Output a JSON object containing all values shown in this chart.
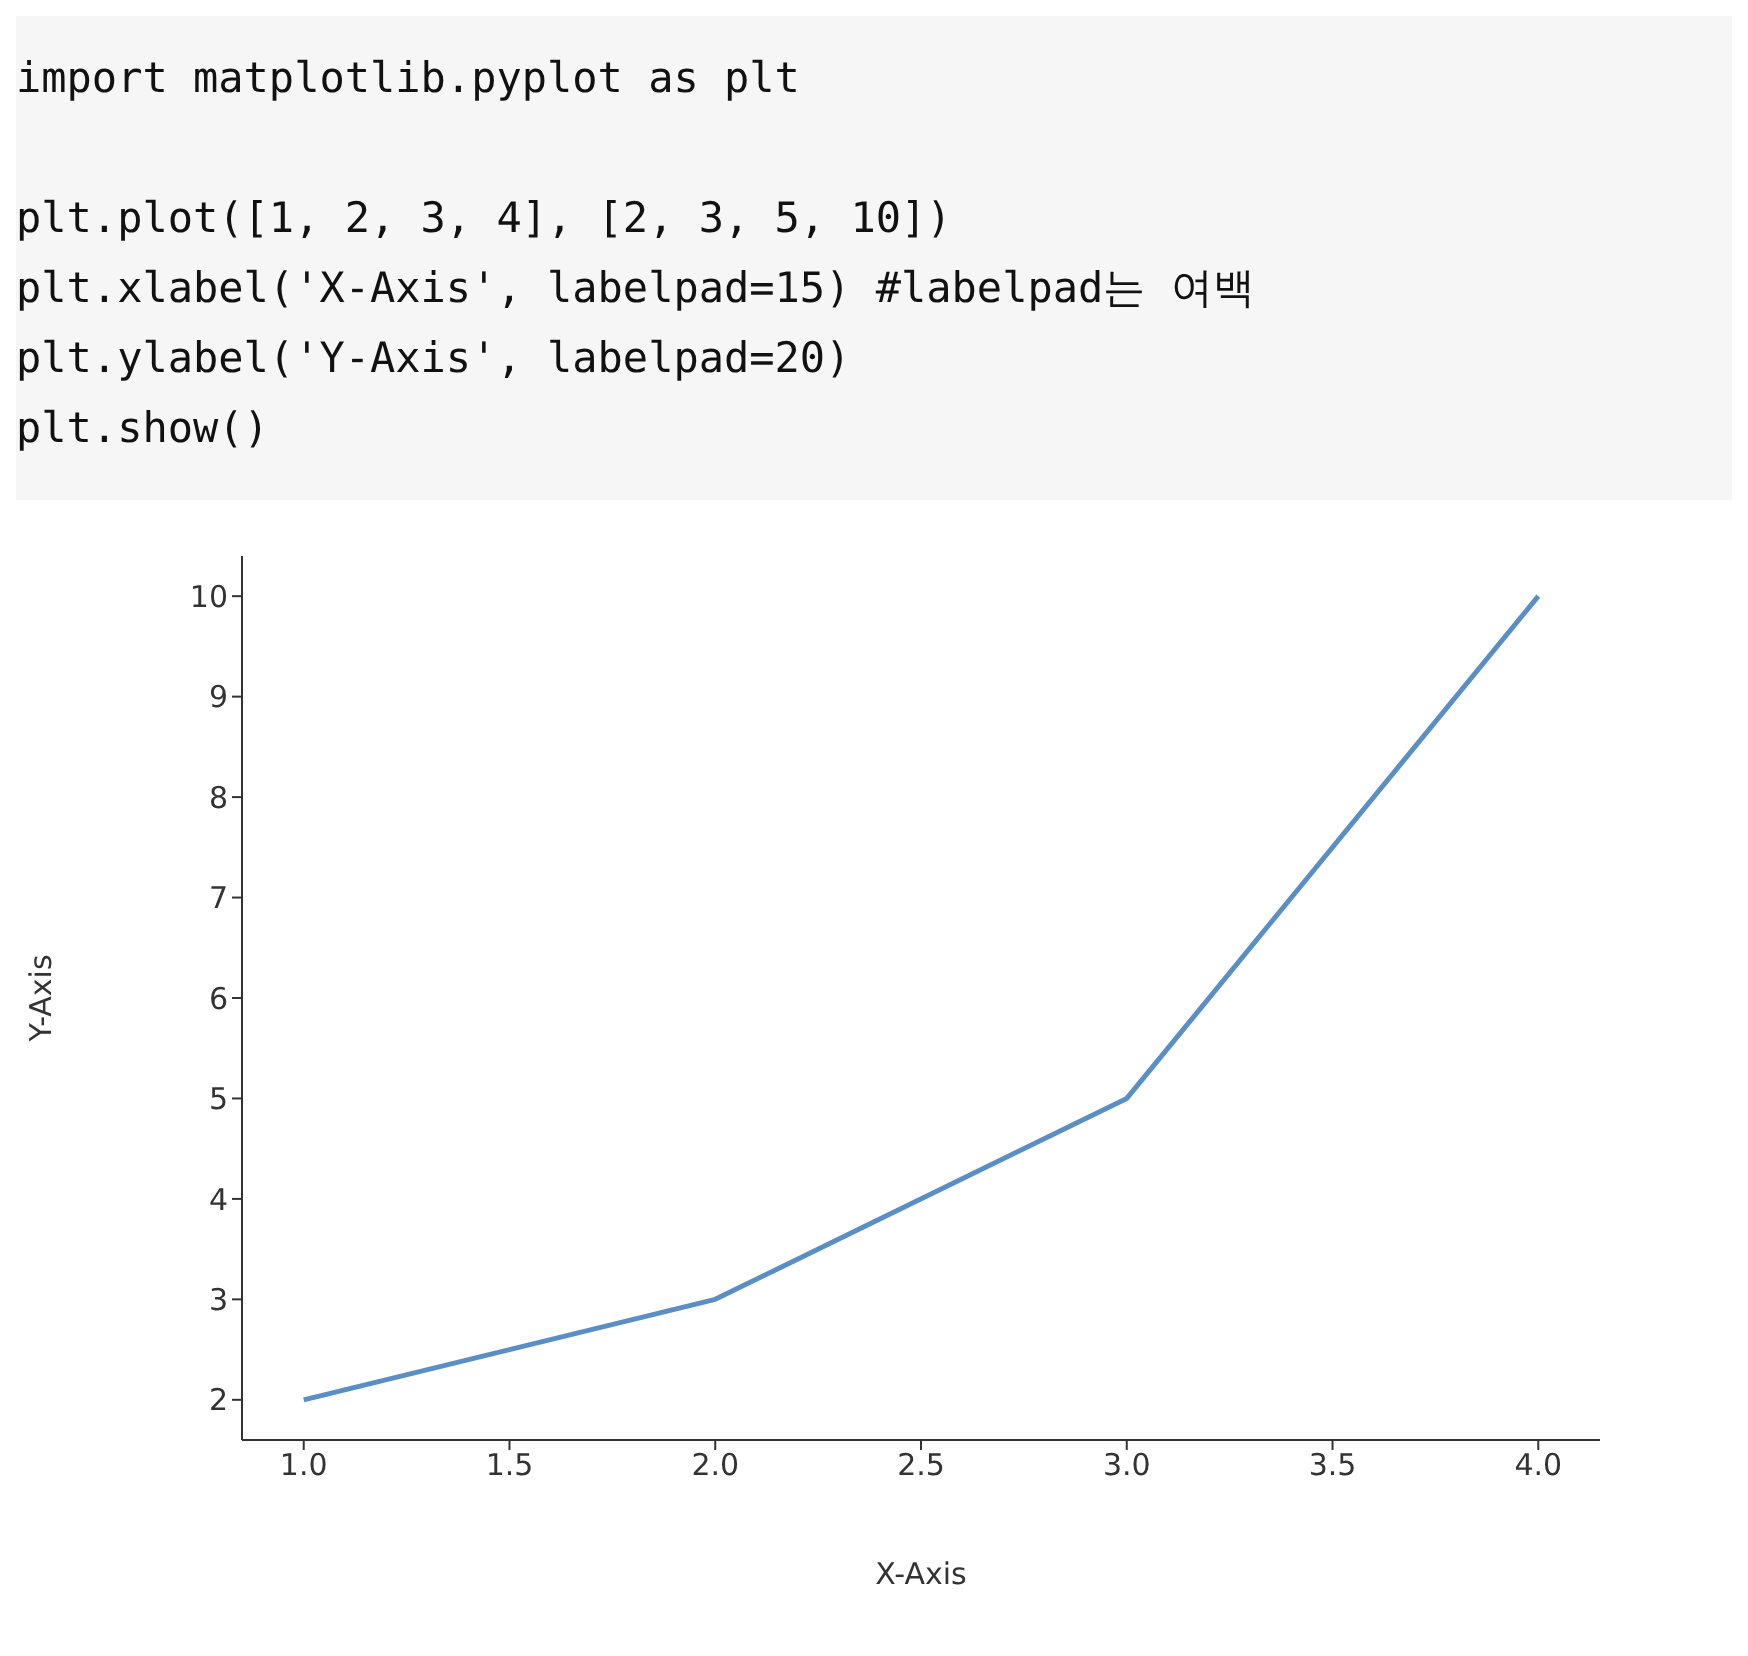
{
  "chart_data": {
    "type": "line",
    "xlabel": "X-Axis",
    "ylabel": "Y-Axis",
    "annotations": [
      "import matplotlib.pyplot as plt",
      "plt.plot([1, 2, 3, 4], [2, 3, 5, 10])",
      "plt.xlabel('X-Axis', labelpad=15) #labelpad는 여백",
      "plt.ylabel('Y-Axis', labelpad=20)",
      "plt.show()"
    ],
    "x": [
      1,
      2,
      3,
      4
    ],
    "series": [
      {
        "color": "#5a8fc5",
        "values": [
          2,
          3,
          5,
          10
        ]
      }
    ],
    "xlim": [
      0.85,
      4.15
    ],
    "xticks": [
      {
        "value": 1,
        "label": "1.0"
      },
      {
        "value": 1.5,
        "label": "1.5"
      },
      {
        "value": 2,
        "label": "2.0"
      },
      {
        "value": 2.5,
        "label": "2.5"
      },
      {
        "value": 3,
        "label": "3.0"
      },
      {
        "value": 3.5,
        "label": "3.5"
      },
      {
        "value": 4,
        "label": "4.0"
      }
    ],
    "ylim": [
      1.6,
      10.4
    ],
    "yticks": [
      2,
      3,
      4,
      5,
      6,
      7,
      8,
      9,
      10
    ]
  }
}
